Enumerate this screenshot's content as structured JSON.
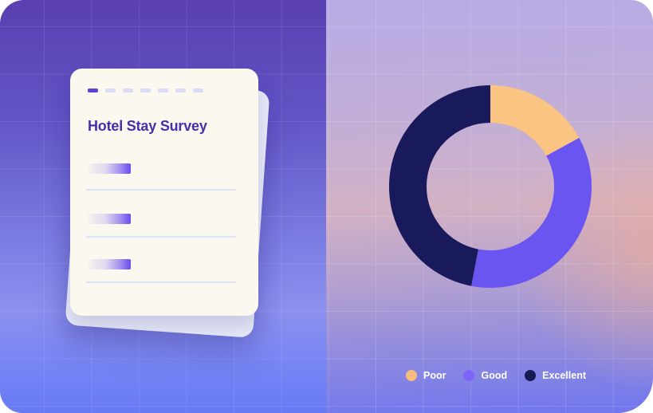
{
  "theme": {
    "card_bg": "#faf8ef",
    "back_card_bg": "#e8ecf9",
    "title_color": "#4430ac",
    "dash_active": "#5b3fd6",
    "dash_inactive": "#dbdaf7",
    "divider_color": "#dee2f8",
    "bar_accent": "#6a4cf0",
    "left_panel_top": "#5a3fb0",
    "left_panel_bottom": "#687af4"
  },
  "card": {
    "title": "Hotel Stay Survey",
    "progress_dashes": {
      "total": 7,
      "active": 1
    },
    "skeleton_rows": 3
  },
  "chart_data": {
    "type": "pie",
    "donut": true,
    "categories": [
      "Poor",
      "Good",
      "Excellent"
    ],
    "values": [
      17,
      36,
      47
    ],
    "colors": [
      "#fbc483",
      "#6b55f0",
      "#191a5c"
    ],
    "legend_position": "bottom",
    "geometry": {
      "outer_radius": 127,
      "inner_radius": 80
    }
  },
  "legend": {
    "items": [
      {
        "label": "Poor",
        "color": "#f6bc7d"
      },
      {
        "label": "Good",
        "color": "#7d64fb"
      },
      {
        "label": "Excellent",
        "color": "#141b55"
      }
    ]
  }
}
